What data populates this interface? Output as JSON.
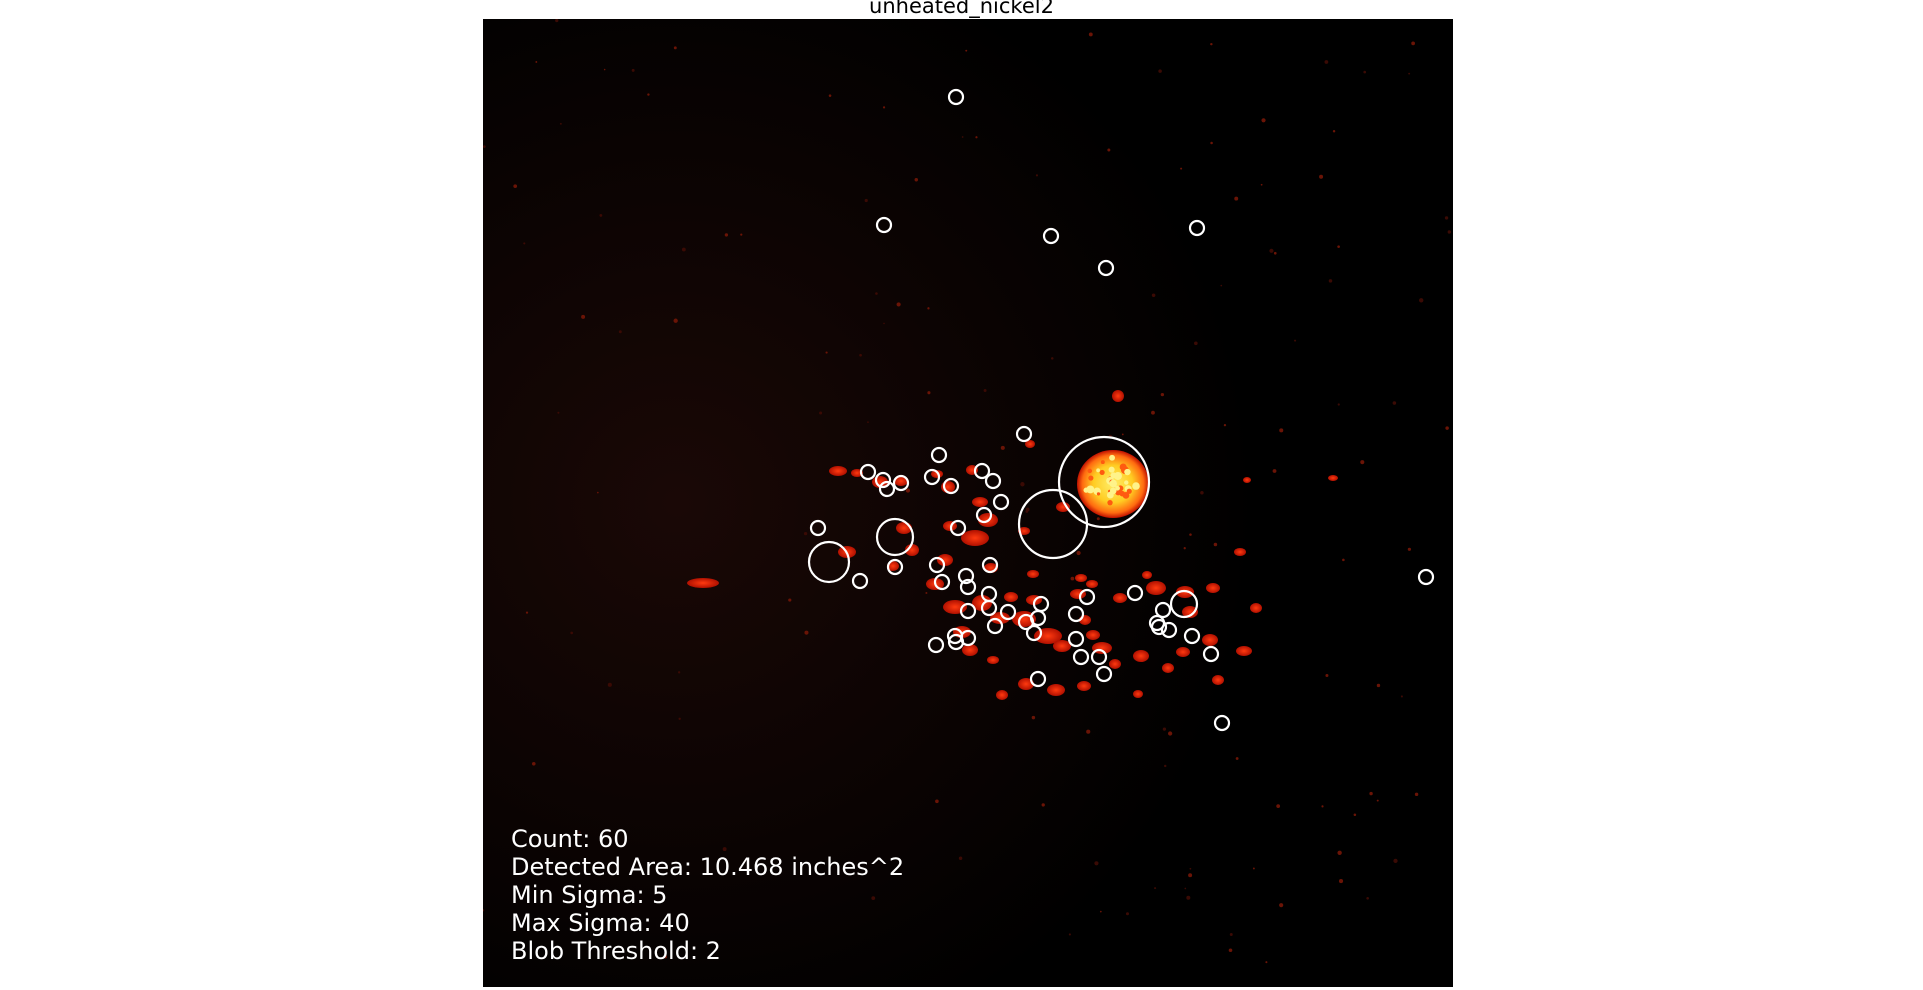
{
  "title": "unheated_nickel2",
  "annotations": {
    "count": "Count: 60",
    "area": "Detected Area: 10.468 inches^2",
    "min_sigma": "Min Sigma: 5",
    "max_sigma": "Max Sigma: 40",
    "threshold": "Blob Threshold: 2"
  },
  "colors": {
    "background": "#000000",
    "spot": "#ff2a0a",
    "hot": "#ffe23a",
    "circle": "#ffffff"
  }
}
